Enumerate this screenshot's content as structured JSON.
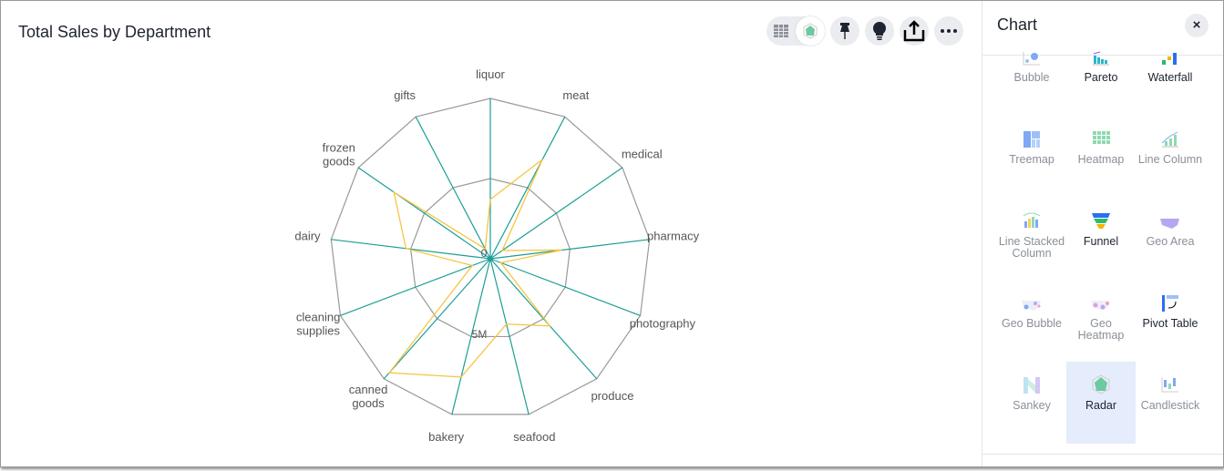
{
  "header": {
    "title": "Total Sales by Department"
  },
  "toolbar": {
    "icons": [
      "table-view-icon",
      "chart-view-icon",
      "pin-icon",
      "lightbulb-icon",
      "share-icon",
      "more-icon"
    ]
  },
  "chart_data": {
    "type": "radar",
    "title": "",
    "categories": [
      "liquor",
      "meat",
      "medical",
      "pharmacy",
      "photography",
      "produce",
      "seafood",
      "bakery",
      "canned goods",
      "cleaning supplies",
      "dairy",
      "frozen goods",
      "gifts"
    ],
    "series": [
      {
        "values": [
          3700000,
          7000000,
          900000,
          4500000,
          700000,
          5600000,
          4200000,
          7600000,
          9500000,
          1200000,
          5300000,
          7300000,
          700000
        ],
        "color": "#f5c542"
      }
    ],
    "rlim": [
      0,
      10000000
    ],
    "tick_labels": [
      "0",
      "5M"
    ],
    "grid_color": "#999999",
    "spoke_color": "#1a9e96"
  },
  "panel": {
    "title": "Chart",
    "close_label": "×",
    "types": [
      {
        "label": "Bubble",
        "enabled": false
      },
      {
        "label": "Pareto",
        "enabled": true
      },
      {
        "label": "Waterfall",
        "enabled": true
      },
      {
        "label": "Treemap",
        "enabled": false
      },
      {
        "label": "Heatmap",
        "enabled": false
      },
      {
        "label": "Line Column",
        "enabled": false
      },
      {
        "label": "Line Stacked Column",
        "enabled": false
      },
      {
        "label": "Funnel",
        "enabled": true
      },
      {
        "label": "Geo Area",
        "enabled": false
      },
      {
        "label": "Geo Bubble",
        "enabled": false
      },
      {
        "label": "Geo Heatmap",
        "enabled": false
      },
      {
        "label": "Pivot Table",
        "enabled": true
      },
      {
        "label": "Sankey",
        "enabled": false
      },
      {
        "label": "Radar",
        "enabled": true,
        "selected": true
      },
      {
        "label": "Candlestick",
        "enabled": false
      }
    ]
  }
}
